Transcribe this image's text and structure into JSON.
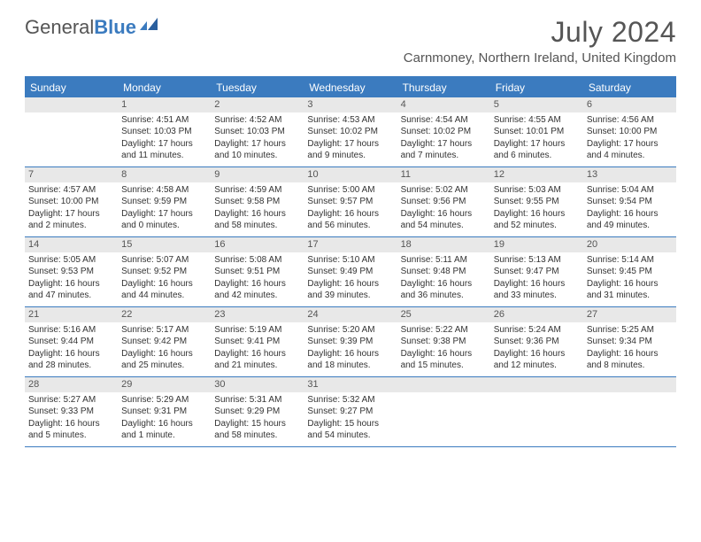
{
  "logo": {
    "text1": "General",
    "text2": "Blue"
  },
  "title": "July 2024",
  "location": "Carnmoney, Northern Ireland, United Kingdom",
  "colors": {
    "accent": "#3b7bbf",
    "daynum_bg": "#e8e8e8",
    "text": "#333333"
  },
  "dayheads": [
    "Sunday",
    "Monday",
    "Tuesday",
    "Wednesday",
    "Thursday",
    "Friday",
    "Saturday"
  ],
  "weeks": [
    [
      {
        "n": "",
        "sunrise": "",
        "sunset": "",
        "daylight": ""
      },
      {
        "n": "1",
        "sunrise": "Sunrise: 4:51 AM",
        "sunset": "Sunset: 10:03 PM",
        "daylight": "Daylight: 17 hours and 11 minutes."
      },
      {
        "n": "2",
        "sunrise": "Sunrise: 4:52 AM",
        "sunset": "Sunset: 10:03 PM",
        "daylight": "Daylight: 17 hours and 10 minutes."
      },
      {
        "n": "3",
        "sunrise": "Sunrise: 4:53 AM",
        "sunset": "Sunset: 10:02 PM",
        "daylight": "Daylight: 17 hours and 9 minutes."
      },
      {
        "n": "4",
        "sunrise": "Sunrise: 4:54 AM",
        "sunset": "Sunset: 10:02 PM",
        "daylight": "Daylight: 17 hours and 7 minutes."
      },
      {
        "n": "5",
        "sunrise": "Sunrise: 4:55 AM",
        "sunset": "Sunset: 10:01 PM",
        "daylight": "Daylight: 17 hours and 6 minutes."
      },
      {
        "n": "6",
        "sunrise": "Sunrise: 4:56 AM",
        "sunset": "Sunset: 10:00 PM",
        "daylight": "Daylight: 17 hours and 4 minutes."
      }
    ],
    [
      {
        "n": "7",
        "sunrise": "Sunrise: 4:57 AM",
        "sunset": "Sunset: 10:00 PM",
        "daylight": "Daylight: 17 hours and 2 minutes."
      },
      {
        "n": "8",
        "sunrise": "Sunrise: 4:58 AM",
        "sunset": "Sunset: 9:59 PM",
        "daylight": "Daylight: 17 hours and 0 minutes."
      },
      {
        "n": "9",
        "sunrise": "Sunrise: 4:59 AM",
        "sunset": "Sunset: 9:58 PM",
        "daylight": "Daylight: 16 hours and 58 minutes."
      },
      {
        "n": "10",
        "sunrise": "Sunrise: 5:00 AM",
        "sunset": "Sunset: 9:57 PM",
        "daylight": "Daylight: 16 hours and 56 minutes."
      },
      {
        "n": "11",
        "sunrise": "Sunrise: 5:02 AM",
        "sunset": "Sunset: 9:56 PM",
        "daylight": "Daylight: 16 hours and 54 minutes."
      },
      {
        "n": "12",
        "sunrise": "Sunrise: 5:03 AM",
        "sunset": "Sunset: 9:55 PM",
        "daylight": "Daylight: 16 hours and 52 minutes."
      },
      {
        "n": "13",
        "sunrise": "Sunrise: 5:04 AM",
        "sunset": "Sunset: 9:54 PM",
        "daylight": "Daylight: 16 hours and 49 minutes."
      }
    ],
    [
      {
        "n": "14",
        "sunrise": "Sunrise: 5:05 AM",
        "sunset": "Sunset: 9:53 PM",
        "daylight": "Daylight: 16 hours and 47 minutes."
      },
      {
        "n": "15",
        "sunrise": "Sunrise: 5:07 AM",
        "sunset": "Sunset: 9:52 PM",
        "daylight": "Daylight: 16 hours and 44 minutes."
      },
      {
        "n": "16",
        "sunrise": "Sunrise: 5:08 AM",
        "sunset": "Sunset: 9:51 PM",
        "daylight": "Daylight: 16 hours and 42 minutes."
      },
      {
        "n": "17",
        "sunrise": "Sunrise: 5:10 AM",
        "sunset": "Sunset: 9:49 PM",
        "daylight": "Daylight: 16 hours and 39 minutes."
      },
      {
        "n": "18",
        "sunrise": "Sunrise: 5:11 AM",
        "sunset": "Sunset: 9:48 PM",
        "daylight": "Daylight: 16 hours and 36 minutes."
      },
      {
        "n": "19",
        "sunrise": "Sunrise: 5:13 AM",
        "sunset": "Sunset: 9:47 PM",
        "daylight": "Daylight: 16 hours and 33 minutes."
      },
      {
        "n": "20",
        "sunrise": "Sunrise: 5:14 AM",
        "sunset": "Sunset: 9:45 PM",
        "daylight": "Daylight: 16 hours and 31 minutes."
      }
    ],
    [
      {
        "n": "21",
        "sunrise": "Sunrise: 5:16 AM",
        "sunset": "Sunset: 9:44 PM",
        "daylight": "Daylight: 16 hours and 28 minutes."
      },
      {
        "n": "22",
        "sunrise": "Sunrise: 5:17 AM",
        "sunset": "Sunset: 9:42 PM",
        "daylight": "Daylight: 16 hours and 25 minutes."
      },
      {
        "n": "23",
        "sunrise": "Sunrise: 5:19 AM",
        "sunset": "Sunset: 9:41 PM",
        "daylight": "Daylight: 16 hours and 21 minutes."
      },
      {
        "n": "24",
        "sunrise": "Sunrise: 5:20 AM",
        "sunset": "Sunset: 9:39 PM",
        "daylight": "Daylight: 16 hours and 18 minutes."
      },
      {
        "n": "25",
        "sunrise": "Sunrise: 5:22 AM",
        "sunset": "Sunset: 9:38 PM",
        "daylight": "Daylight: 16 hours and 15 minutes."
      },
      {
        "n": "26",
        "sunrise": "Sunrise: 5:24 AM",
        "sunset": "Sunset: 9:36 PM",
        "daylight": "Daylight: 16 hours and 12 minutes."
      },
      {
        "n": "27",
        "sunrise": "Sunrise: 5:25 AM",
        "sunset": "Sunset: 9:34 PM",
        "daylight": "Daylight: 16 hours and 8 minutes."
      }
    ],
    [
      {
        "n": "28",
        "sunrise": "Sunrise: 5:27 AM",
        "sunset": "Sunset: 9:33 PM",
        "daylight": "Daylight: 16 hours and 5 minutes."
      },
      {
        "n": "29",
        "sunrise": "Sunrise: 5:29 AM",
        "sunset": "Sunset: 9:31 PM",
        "daylight": "Daylight: 16 hours and 1 minute."
      },
      {
        "n": "30",
        "sunrise": "Sunrise: 5:31 AM",
        "sunset": "Sunset: 9:29 PM",
        "daylight": "Daylight: 15 hours and 58 minutes."
      },
      {
        "n": "31",
        "sunrise": "Sunrise: 5:32 AM",
        "sunset": "Sunset: 9:27 PM",
        "daylight": "Daylight: 15 hours and 54 minutes."
      },
      {
        "n": "",
        "sunrise": "",
        "sunset": "",
        "daylight": ""
      },
      {
        "n": "",
        "sunrise": "",
        "sunset": "",
        "daylight": ""
      },
      {
        "n": "",
        "sunrise": "",
        "sunset": "",
        "daylight": ""
      }
    ]
  ]
}
